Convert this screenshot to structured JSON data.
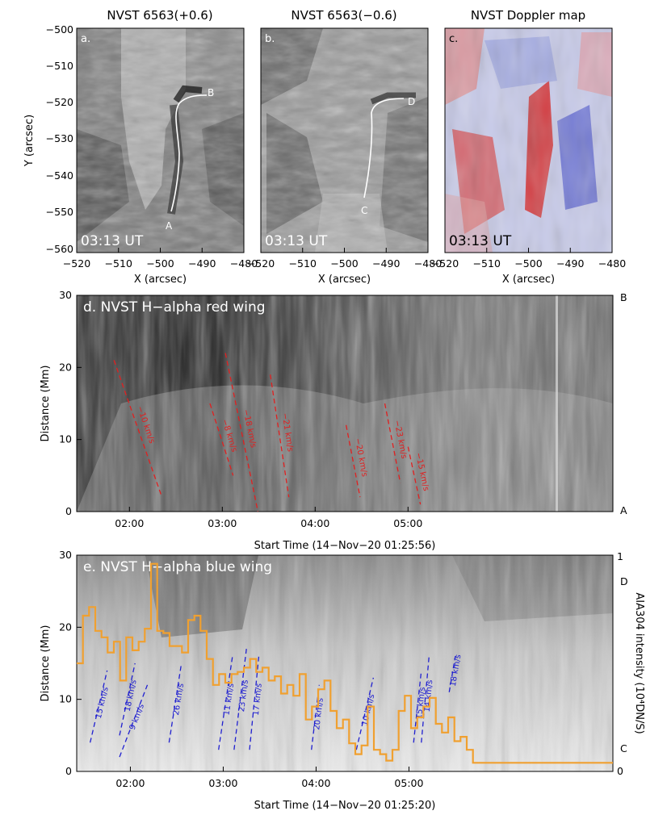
{
  "panel_a": {
    "title": "NVST 6563(+0.6)",
    "label": "a.",
    "time": "03:13 UT",
    "point_start": "A",
    "point_end": "B"
  },
  "panel_b": {
    "title": "NVST 6563(−0.6)",
    "label": "b.",
    "time": "03:13 UT",
    "point_start": "C",
    "point_end": "D"
  },
  "panel_c": {
    "title": "NVST Doppler map",
    "label": "c.",
    "time": "03:13 UT"
  },
  "top_axes": {
    "xlabel": "X (arcsec)",
    "ylabel": "Y (arcsec)",
    "xticks": [
      "−520",
      "−510",
      "−500",
      "−490",
      "−480"
    ],
    "yticks": [
      "−500",
      "−510",
      "−520",
      "−530",
      "−540",
      "−550",
      "−560"
    ]
  },
  "panel_d": {
    "label": "d. NVST H−alpha red wing",
    "xlabel": "Start Time (14−Nov−20 01:25:56)",
    "ylabel": "Distance (Mm)",
    "xticks": [
      "02:00",
      "03:00",
      "04:00",
      "05:00"
    ],
    "yticks": [
      "0",
      "10",
      "20",
      "30"
    ],
    "right_top": "B",
    "right_bottom": "A",
    "speeds": [
      "−10 km/s",
      "−8 km/s",
      "−18 km/s",
      "−21 km/s",
      "−20 km/s",
      "−23 km/s",
      "−15 km/s"
    ]
  },
  "panel_e": {
    "label": "e. NVST H−alpha blue wing",
    "xlabel": "Start Time (14−Nov−20 01:25:20)",
    "ylabel": "Distance (Mm)",
    "y2label": "AIA304 intensity (10⁴DN/S)",
    "xticks": [
      "02:00",
      "03:00",
      "04:00",
      "05:00"
    ],
    "yticks": [
      "0",
      "10",
      "20",
      "30"
    ],
    "y2ticks": [
      "0",
      "1"
    ],
    "right_top": "D",
    "right_bottom": "C",
    "speeds": [
      "15 km/s",
      "18 km/s",
      "9 km/s",
      "26 km/s",
      "11 km/s",
      "23 km/s",
      "17 km/s",
      "20 km/s",
      "10 km/s",
      "15 km/s",
      "14 km/s",
      "18 km/s"
    ]
  },
  "colors": {
    "red_marker": "#e02020",
    "blue_marker": "#2020d0",
    "orange_curve": "#f0a030"
  },
  "chart_data": [
    {
      "type": "line",
      "title": "NVST H−alpha red wing",
      "xlabel": "Start Time (14−Nov−20 01:25:56)",
      "ylabel": "Distance (Mm)",
      "ylim": [
        0,
        30
      ],
      "series": [
        {
          "name": "−10 km/s",
          "x": [
            "01:50",
            "02:21"
          ],
          "values": [
            21,
            2
          ]
        },
        {
          "name": "−8 km/s",
          "x": [
            "02:52",
            "03:07"
          ],
          "values": [
            15,
            5
          ]
        },
        {
          "name": "−18 km/s",
          "x": [
            "03:02",
            "03:23"
          ],
          "values": [
            22,
            0
          ]
        },
        {
          "name": "−21 km/s",
          "x": [
            "03:31",
            "03:43"
          ],
          "values": [
            19,
            2
          ]
        },
        {
          "name": "−20 km/s",
          "x": [
            "04:20",
            "04:29"
          ],
          "values": [
            12,
            2
          ]
        },
        {
          "name": "−23 km/s",
          "x": [
            "04:45",
            "04:55"
          ],
          "values": [
            15,
            4
          ]
        },
        {
          "name": "−15 km/s",
          "x": [
            "05:00",
            "05:08"
          ],
          "values": [
            9,
            1
          ]
        }
      ]
    },
    {
      "type": "line",
      "title": "NVST H−alpha blue wing",
      "xlabel": "Start Time (14−Nov−20 01:25:20)",
      "ylabel": "Distance (Mm)",
      "y2label": "AIA304 intensity (10⁴DN/S)",
      "ylim": [
        0,
        30
      ],
      "y2lim": [
        0,
        1
      ],
      "series": [
        {
          "name": "AIA304 intensity",
          "axis": "right",
          "x_minutes": [
            0,
            4,
            8,
            12,
            16,
            20,
            24,
            28,
            32,
            36,
            40,
            44,
            48,
            52,
            56,
            60,
            64,
            68,
            72,
            76,
            80,
            84,
            88,
            92,
            96,
            100,
            104,
            108,
            112,
            116,
            120,
            124,
            128,
            132,
            136,
            140,
            144,
            148,
            152,
            156,
            160,
            164,
            168,
            172,
            176,
            180,
            184,
            188,
            192,
            196,
            200,
            204,
            208,
            212,
            216,
            220,
            224,
            228,
            232,
            236,
            240,
            244,
            248,
            252,
            256
          ],
          "values": [
            0.5,
            0.72,
            0.76,
            0.65,
            0.62,
            0.55,
            0.6,
            0.42,
            0.62,
            0.56,
            0.6,
            0.66,
            0.96,
            0.65,
            0.64,
            0.58,
            0.58,
            0.55,
            0.7,
            0.72,
            0.65,
            0.52,
            0.4,
            0.45,
            0.41,
            0.45,
            0.46,
            0.48,
            0.52,
            0.46,
            0.48,
            0.42,
            0.44,
            0.36,
            0.4,
            0.35,
            0.45,
            0.24,
            0.3,
            0.38,
            0.42,
            0.28,
            0.2,
            0.24,
            0.13,
            0.08,
            0.12,
            0.3,
            0.1,
            0.08,
            0.05,
            0.1,
            0.28,
            0.35,
            0.2,
            0.25,
            0.3,
            0.34,
            0.22,
            0.18,
            0.25,
            0.14,
            0.16,
            0.1,
            0.04
          ]
        },
        {
          "name": "15 km/s",
          "x": [
            "01:34",
            "01:45"
          ],
          "values": [
            4,
            14
          ]
        },
        {
          "name": "18 km/s",
          "x": [
            "01:53",
            "02:03"
          ],
          "values": [
            5,
            15
          ]
        },
        {
          "name": "9 km/s",
          "x": [
            "01:53",
            "02:11"
          ],
          "values": [
            2,
            12
          ]
        },
        {
          "name": "26 km/s",
          "x": [
            "02:25",
            "02:33"
          ],
          "values": [
            4,
            15
          ]
        },
        {
          "name": "11 km/s",
          "x": [
            "02:57",
            "03:06"
          ],
          "values": [
            3,
            16
          ]
        },
        {
          "name": "23 km/s",
          "x": [
            "03:07",
            "03:15"
          ],
          "values": [
            3,
            17
          ]
        },
        {
          "name": "17 km/s",
          "x": [
            "03:17",
            "03:23"
          ],
          "values": [
            3,
            16
          ]
        },
        {
          "name": "20 km/s",
          "x": [
            "03:57",
            "04:02"
          ],
          "values": [
            3,
            12
          ]
        },
        {
          "name": "10 km/s",
          "x": [
            "04:26",
            "04:37"
          ],
          "values": [
            3,
            13
          ]
        },
        {
          "name": "15 km/s",
          "x": [
            "05:03",
            "05:08"
          ],
          "values": [
            4,
            14
          ]
        },
        {
          "name": "14 km/s",
          "x": [
            "05:08",
            "05:13"
          ],
          "values": [
            4,
            16
          ]
        },
        {
          "name": "18 km/s",
          "x": [
            "05:26",
            "05:30"
          ],
          "values": [
            11,
            16
          ]
        }
      ]
    }
  ]
}
